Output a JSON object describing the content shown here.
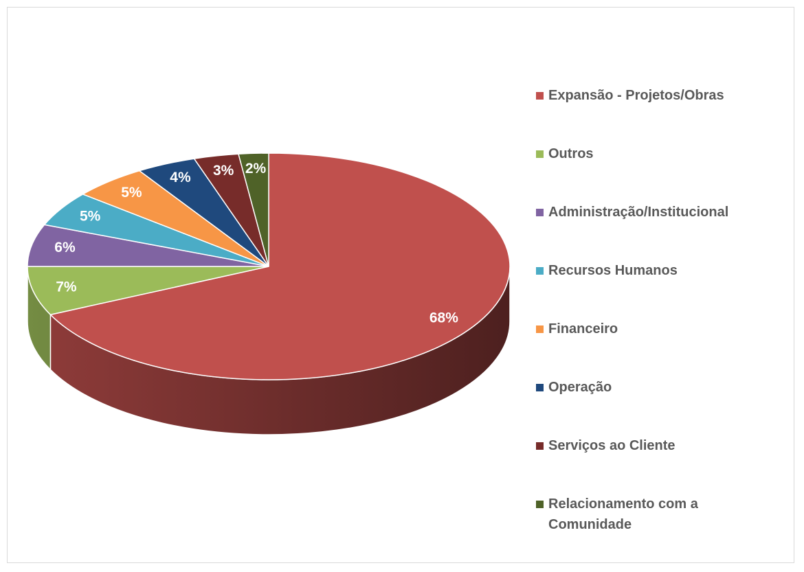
{
  "chart_data": {
    "type": "pie3d",
    "categories": [
      "Expansão - Projetos/Obras",
      "Outros",
      "Administração/Institucional",
      "Recursos Humanos",
      "Financeiro",
      "Operação",
      "Serviços ao Cliente",
      "Relacionamento com a Comunidade"
    ],
    "values": [
      68,
      7,
      6,
      5,
      5,
      4,
      3,
      2
    ],
    "value_labels": [
      "68%",
      "7%",
      "6%",
      "5%",
      "5%",
      "4%",
      "3%",
      "2%"
    ],
    "colors": [
      "#c0504d",
      "#9bbb59",
      "#8064a2",
      "#4bacc6",
      "#f79646",
      "#1f497d",
      "#772c2a",
      "#4f6228"
    ],
    "legend": "right"
  }
}
